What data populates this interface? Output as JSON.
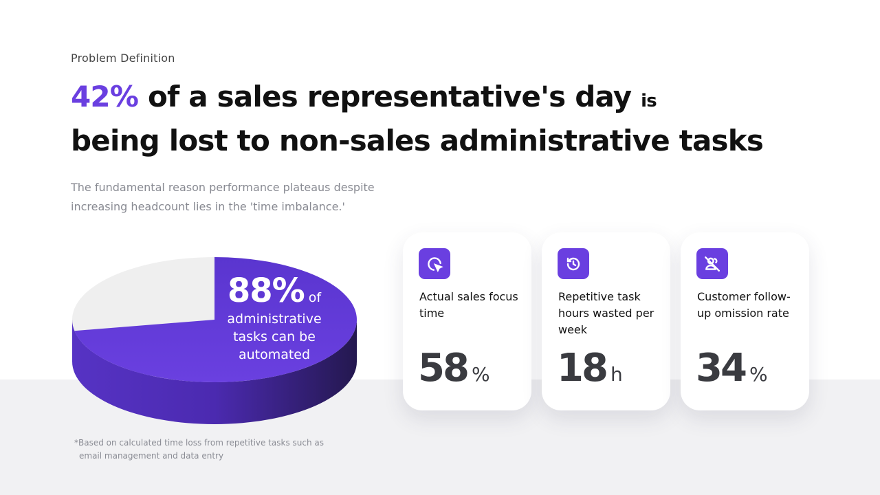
{
  "eyebrow": "Problem Definition",
  "title": {
    "highlight": "42%",
    "part1": " of a sales representative's day ",
    "small": "is",
    "line2": "being lost to non-sales administrative tasks"
  },
  "subtitle": {
    "line1": "The fundamental reason performance plateaus despite",
    "line2": "increasing headcount lies in the 'time imbalance.'"
  },
  "pie": {
    "value_percent": 88,
    "big": "88%",
    "of": "of",
    "line1": "administrative",
    "line2": "tasks can be",
    "line3": "automated",
    "accent": "#6a3fe0",
    "rest": "#efefef"
  },
  "footnote": {
    "line1": "*Based on calculated time loss from repetitive tasks such as",
    "line2": "email management and data entry"
  },
  "cards": [
    {
      "icon": "cursor-click-icon",
      "label": "Actual sales focus time",
      "value": "58",
      "unit": "%"
    },
    {
      "icon": "history-icon",
      "label": "Repetitive task hours wasted per week",
      "value": "18",
      "unit": "h"
    },
    {
      "icon": "user-off-icon",
      "label": "Customer follow-up omission rate",
      "value": "34",
      "unit": "%"
    }
  ]
}
